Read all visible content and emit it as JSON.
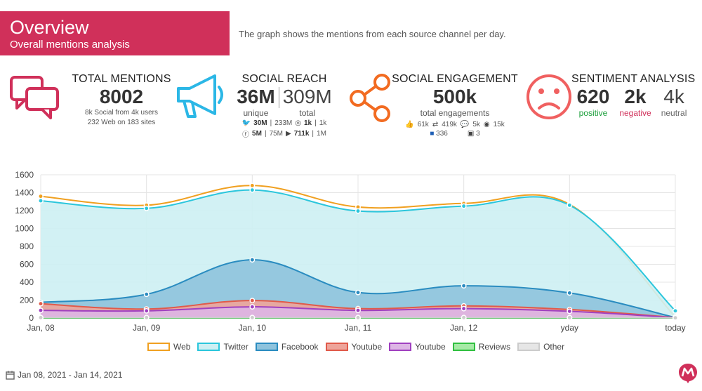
{
  "header": {
    "title": "Overview",
    "subtitle": "Overall mentions analysis",
    "description": "The graph shows the mentions from each source channel per day."
  },
  "kpis": {
    "total_mentions": {
      "title": "TOTAL MENTIONS",
      "value": "8002",
      "line1": "8k Social from 4k users",
      "line2": "232 Web on 183 sites",
      "icon": "chat-bubbles-icon",
      "color": "#d0305a"
    },
    "social_reach": {
      "title": "SOCIAL REACH",
      "unique_value": "36M",
      "unique_label": "unique",
      "total_value": "309M",
      "total_label": "total",
      "twitter_a": "30M",
      "twitter_b": "233M",
      "instagram_a": "1k",
      "instagram_b": "1k",
      "facebook_a": "5M",
      "facebook_b": "75M",
      "youtube_a": "711k",
      "youtube_b": "1M",
      "icon": "megaphone-icon",
      "color": "#2bb7e6"
    },
    "social_engagement": {
      "title": "SOCIAL ENGAGEMENT",
      "value": "500k",
      "label": "total engagements",
      "likes": "61k",
      "retweets": "419k",
      "comments": "5k",
      "views": "15k",
      "facebook": "336",
      "pinterest": "3",
      "icon": "share-icon",
      "color": "#f26b21"
    },
    "sentiment": {
      "title": "SENTIMENT ANALYSIS",
      "positive_value": "620",
      "positive_label": "positive",
      "negative_value": "2k",
      "negative_label": "negative",
      "neutral_value": "4k",
      "neutral_label": "neutral",
      "icon": "sad-face-icon",
      "color": "#f06060",
      "positive_color": "#1a9e3a",
      "negative_color": "#d0305a",
      "neutral_color": "#666666"
    }
  },
  "chart_data": {
    "type": "area",
    "categories": [
      "Jan, 08",
      "Jan, 09",
      "Jan, 10",
      "Jan, 11",
      "Jan, 12",
      "yday",
      "today"
    ],
    "ylim": [
      0,
      1600
    ],
    "yticks": [
      0,
      200,
      400,
      600,
      800,
      1000,
      1200,
      1400,
      1600
    ],
    "grid": true,
    "legend_position": "bottom",
    "series": [
      {
        "name": "Web",
        "values": [
          1360,
          1260,
          1480,
          1240,
          1280,
          1270,
          10
        ],
        "color": "#f0a020",
        "fill": "none"
      },
      {
        "name": "Twitter",
        "values": [
          1310,
          1225,
          1430,
          1195,
          1250,
          1260,
          80
        ],
        "color": "#2bc6dc",
        "fill": "#cdeff3"
      },
      {
        "name": "Facebook",
        "values": [
          175,
          265,
          650,
          285,
          360,
          280,
          5
        ],
        "color": "#2a8cc0",
        "fill": "#8ec3dd"
      },
      {
        "name": "Youtube",
        "values": [
          160,
          100,
          195,
          105,
          135,
          95,
          5
        ],
        "color": "#e05a4a",
        "fill": "#eea49a"
      },
      {
        "name": "Youtube",
        "values": [
          85,
          80,
          125,
          85,
          105,
          75,
          3
        ],
        "color": "#a040c0",
        "fill": "#ddb5e5"
      },
      {
        "name": "Reviews",
        "values": [
          0,
          0,
          0,
          0,
          0,
          0,
          0
        ],
        "color": "#30c040",
        "fill": "#a6eaa6"
      },
      {
        "name": "Other",
        "values": [
          5,
          5,
          5,
          5,
          5,
          5,
          2
        ],
        "color": "#cccccc",
        "fill": "#e6e6e6"
      }
    ]
  },
  "footer": {
    "date_range": "Jan 08, 2021 - Jan 14, 2021",
    "icon": "calendar-icon",
    "logo": "brand-logo-icon"
  }
}
